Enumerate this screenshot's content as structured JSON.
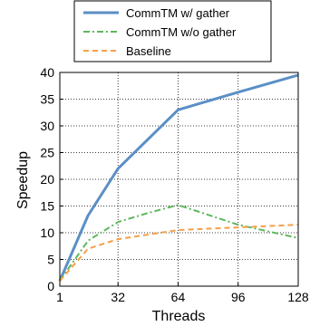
{
  "chart_data": {
    "type": "line",
    "title": "",
    "xlabel": "Threads",
    "ylabel": "Speedup",
    "xlim": [
      1,
      128
    ],
    "ylim": [
      0,
      40
    ],
    "xticks": [
      1,
      32,
      64,
      96,
      128
    ],
    "yticks": [
      0,
      5,
      10,
      15,
      20,
      25,
      30,
      35,
      40
    ],
    "grid": true,
    "legend_position": "top (above plot)",
    "series": [
      {
        "name": "CommTM w/ gather",
        "color": "#5b8fc6",
        "dash": "solid",
        "x": [
          1,
          16,
          32,
          64,
          96,
          128
        ],
        "y": [
          1,
          13.2,
          22,
          33,
          36.3,
          39.5
        ]
      },
      {
        "name": "CommTM w/o gather",
        "color": "#5cb85c",
        "dash": "dashdot",
        "x": [
          1,
          16,
          32,
          48,
          64,
          96,
          128
        ],
        "y": [
          1,
          8.5,
          12,
          13.7,
          15.2,
          11.5,
          9
        ]
      },
      {
        "name": "Baseline",
        "color": "#f5a04a",
        "dash": "dashed",
        "x": [
          1,
          16,
          32,
          64,
          96,
          128
        ],
        "y": [
          1,
          7,
          8.8,
          10.5,
          11,
          11.5
        ]
      }
    ]
  }
}
